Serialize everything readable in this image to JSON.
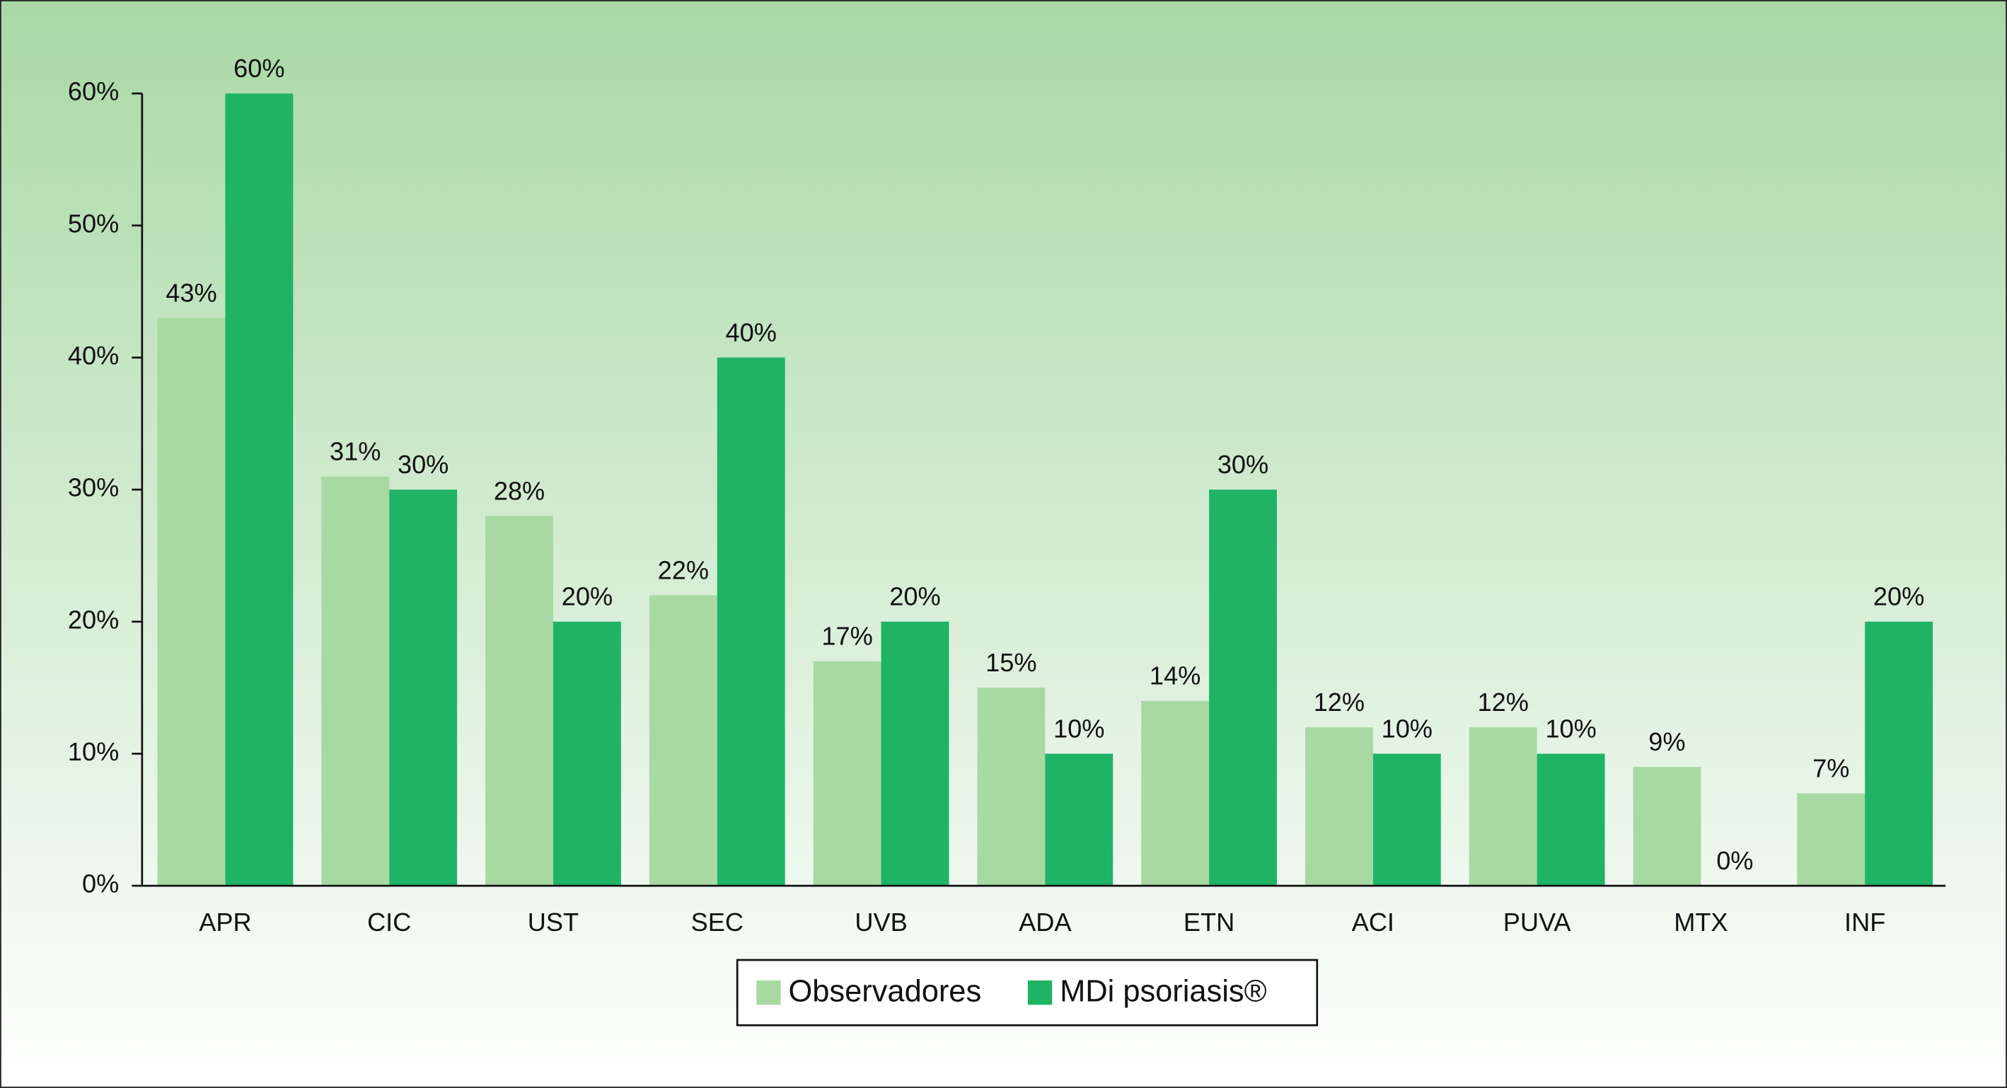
{
  "chart_data": {
    "type": "bar",
    "categories": [
      "APR",
      "CIC",
      "UST",
      "SEC",
      "UVB",
      "ADA",
      "ETN",
      "ACI",
      "PUVA",
      "MTX",
      "INF"
    ],
    "series": [
      {
        "name": "Observadores",
        "color": "#a8d9a3",
        "values": [
          43,
          31,
          28,
          22,
          17,
          15,
          14,
          12,
          12,
          9,
          7
        ],
        "value_labels": [
          "43%",
          "31%",
          "28%",
          "22%",
          "17%",
          "15%",
          "14%",
          "12%",
          "12%",
          "9%",
          "7%"
        ]
      },
      {
        "name": "MDi psoriasis®",
        "color": "#1fb366",
        "values": [
          60,
          30,
          20,
          40,
          20,
          10,
          30,
          10,
          10,
          0,
          20
        ],
        "value_labels": [
          "60%",
          "30%",
          "20%",
          "40%",
          "20%",
          "10%",
          "30%",
          "10%",
          "10%",
          "0%",
          "20%"
        ]
      }
    ],
    "ylim": [
      0,
      60
    ],
    "yticks": [
      {
        "value": 0,
        "label": "0%"
      },
      {
        "value": 10,
        "label": "10%"
      },
      {
        "value": 20,
        "label": "20%"
      },
      {
        "value": 30,
        "label": "30%"
      },
      {
        "value": 40,
        "label": "40%"
      },
      {
        "value": 50,
        "label": "50%"
      },
      {
        "value": 60,
        "label": "60%"
      }
    ],
    "legend": "bottom"
  }
}
